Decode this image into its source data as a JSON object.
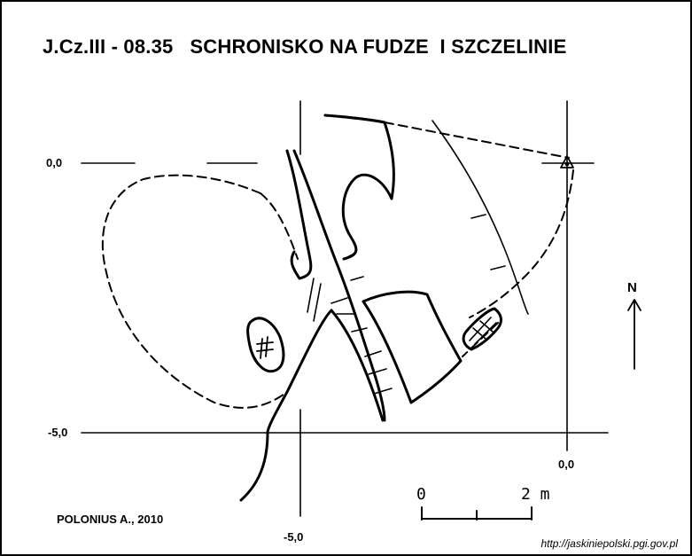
{
  "title": "J.Cz.III - 08.35   SCHRONISKO NA FUDZE  I SZCZELINIE",
  "grid": {
    "label_y_top": "0,0",
    "label_y_bottom": "-5,0",
    "label_x_left": "-5,0",
    "label_x_right": "0,0"
  },
  "author": "POLONIUS A., 2010",
  "north_label": "N",
  "scale": {
    "start_label": "0",
    "end_label": "2 m"
  },
  "source_url": "http://jaskiniepolski.pgi.gov.pl",
  "colors": {
    "ink": "#000000",
    "paper": "#ffffff"
  }
}
